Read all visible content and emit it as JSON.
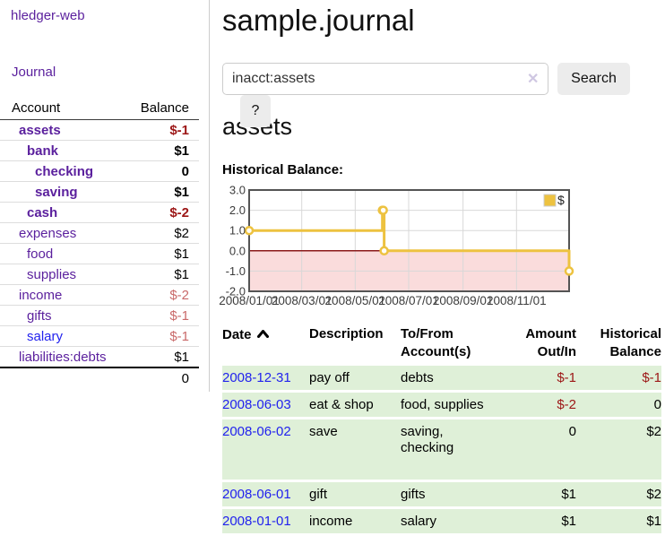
{
  "sidebar": {
    "app_title": "hledger-web",
    "journal_link": "Journal",
    "accounts_table": {
      "header_account": "Account",
      "header_balance": "Balance",
      "rows": [
        {
          "name": "assets",
          "balance": "$-1",
          "indent": 0,
          "bold": true,
          "name_style": "purple",
          "balance_style": "neg-strong"
        },
        {
          "name": "bank",
          "balance": "$1",
          "indent": 1,
          "bold": true,
          "name_style": "purple",
          "balance_style": "plain"
        },
        {
          "name": "checking",
          "balance": "0",
          "indent": 2,
          "bold": true,
          "name_style": "purple",
          "balance_style": "plain"
        },
        {
          "name": "saving",
          "balance": "$1",
          "indent": 2,
          "bold": true,
          "name_style": "purple",
          "balance_style": "plain"
        },
        {
          "name": "cash",
          "balance": "$-2",
          "indent": 1,
          "bold": true,
          "name_style": "purple",
          "balance_style": "neg-strong"
        },
        {
          "name": "expenses",
          "balance": "$2",
          "indent": 0,
          "bold": false,
          "name_style": "purple",
          "balance_style": "plain"
        },
        {
          "name": "food",
          "balance": "$1",
          "indent": 1,
          "bold": false,
          "name_style": "purple",
          "balance_style": "plain"
        },
        {
          "name": "supplies",
          "balance": "$1",
          "indent": 1,
          "bold": false,
          "name_style": "purple",
          "balance_style": "plain"
        },
        {
          "name": "income",
          "balance": "$-2",
          "indent": 0,
          "bold": false,
          "name_style": "purple",
          "balance_style": "neg-soft"
        },
        {
          "name": "gifts",
          "balance": "$-1",
          "indent": 1,
          "bold": false,
          "name_style": "purple",
          "balance_style": "neg-soft"
        },
        {
          "name": "salary",
          "balance": "$-1",
          "indent": 1,
          "bold": false,
          "name_style": "blue",
          "balance_style": "neg-soft"
        },
        {
          "name": "liabilities:debts",
          "balance": "$1",
          "indent": 0,
          "bold": false,
          "name_style": "purple",
          "balance_style": "plain",
          "last": true
        }
      ],
      "total_balance": "0"
    }
  },
  "header": {
    "title": "sample.journal"
  },
  "search": {
    "query": "inacct:assets",
    "clear_icon": "✕",
    "search_button": "Search",
    "help_button": "?"
  },
  "account_page": {
    "heading": "assets",
    "chart_label": "Historical Balance:"
  },
  "chart_data": {
    "type": "line",
    "step": true,
    "title": "Historical Balance:",
    "series": [
      {
        "name": "$",
        "color": "#edc240",
        "points": [
          [
            "2008-01-01",
            1
          ],
          [
            "2008-06-01",
            2
          ],
          [
            "2008-06-02",
            2
          ],
          [
            "2008-06-03",
            0
          ],
          [
            "2008-12-31",
            -1
          ]
        ]
      }
    ],
    "xlim": [
      "2008-01-01",
      "2008-12-31"
    ],
    "ylim": [
      -2,
      3
    ],
    "x_tick_labels": [
      "2008/01/01",
      "2008/03/01",
      "2008/05/01",
      "2008/07/01",
      "2008/09/01",
      "2008/11/01"
    ],
    "y_tick_labels": [
      "3.0",
      "2.0",
      "1.0",
      "0.0",
      "-1.0",
      "-2.0"
    ],
    "y_tick_values": [
      3,
      2,
      1,
      0,
      -1,
      -2
    ],
    "grid": true,
    "legend_position": "top-right",
    "negative_region_color": "#fadcdc",
    "zero_line_color": "#8b1a1a",
    "grid_color": "#d8d8d8",
    "border_color": "#545454"
  },
  "register": {
    "sort_icon": "chevron-up",
    "headers": {
      "date": "Date",
      "description": "Description",
      "accounts": "To/From Account(s)",
      "amount": "Amount Out/In",
      "balance": "Historical Balance"
    },
    "rows": [
      {
        "date": "2008-12-31",
        "description": "pay off",
        "accounts": "debts",
        "amount": "$-1",
        "amount_style": "neg-strong",
        "balance": "$-1",
        "balance_style": "neg-strong"
      },
      {
        "date": "2008-06-03",
        "description": "eat & shop",
        "accounts": "food, supplies",
        "amount": "$-2",
        "amount_style": "neg-strong",
        "balance": "0",
        "balance_style": "plain"
      },
      {
        "date": "2008-06-02",
        "description": "save",
        "accounts": "saving,\nchecking",
        "amount": "0",
        "amount_style": "plain",
        "balance": "$2",
        "balance_style": "plain",
        "tall": true
      },
      {
        "date": "2008-06-01",
        "description": "gift",
        "accounts": "gifts",
        "amount": "$1",
        "amount_style": "plain",
        "balance": "$2",
        "balance_style": "plain"
      },
      {
        "date": "2008-01-01",
        "description": "income",
        "accounts": "salary",
        "amount": "$1",
        "amount_style": "plain",
        "balance": "$1",
        "balance_style": "plain"
      }
    ]
  },
  "colors": {
    "link_purple": "#5a1f9d",
    "link_blue": "#2222ee",
    "negative_strong": "#9c1616",
    "negative_soft": "#c96a6a",
    "row_green": "#dff0d8",
    "series_gold": "#edc240"
  }
}
